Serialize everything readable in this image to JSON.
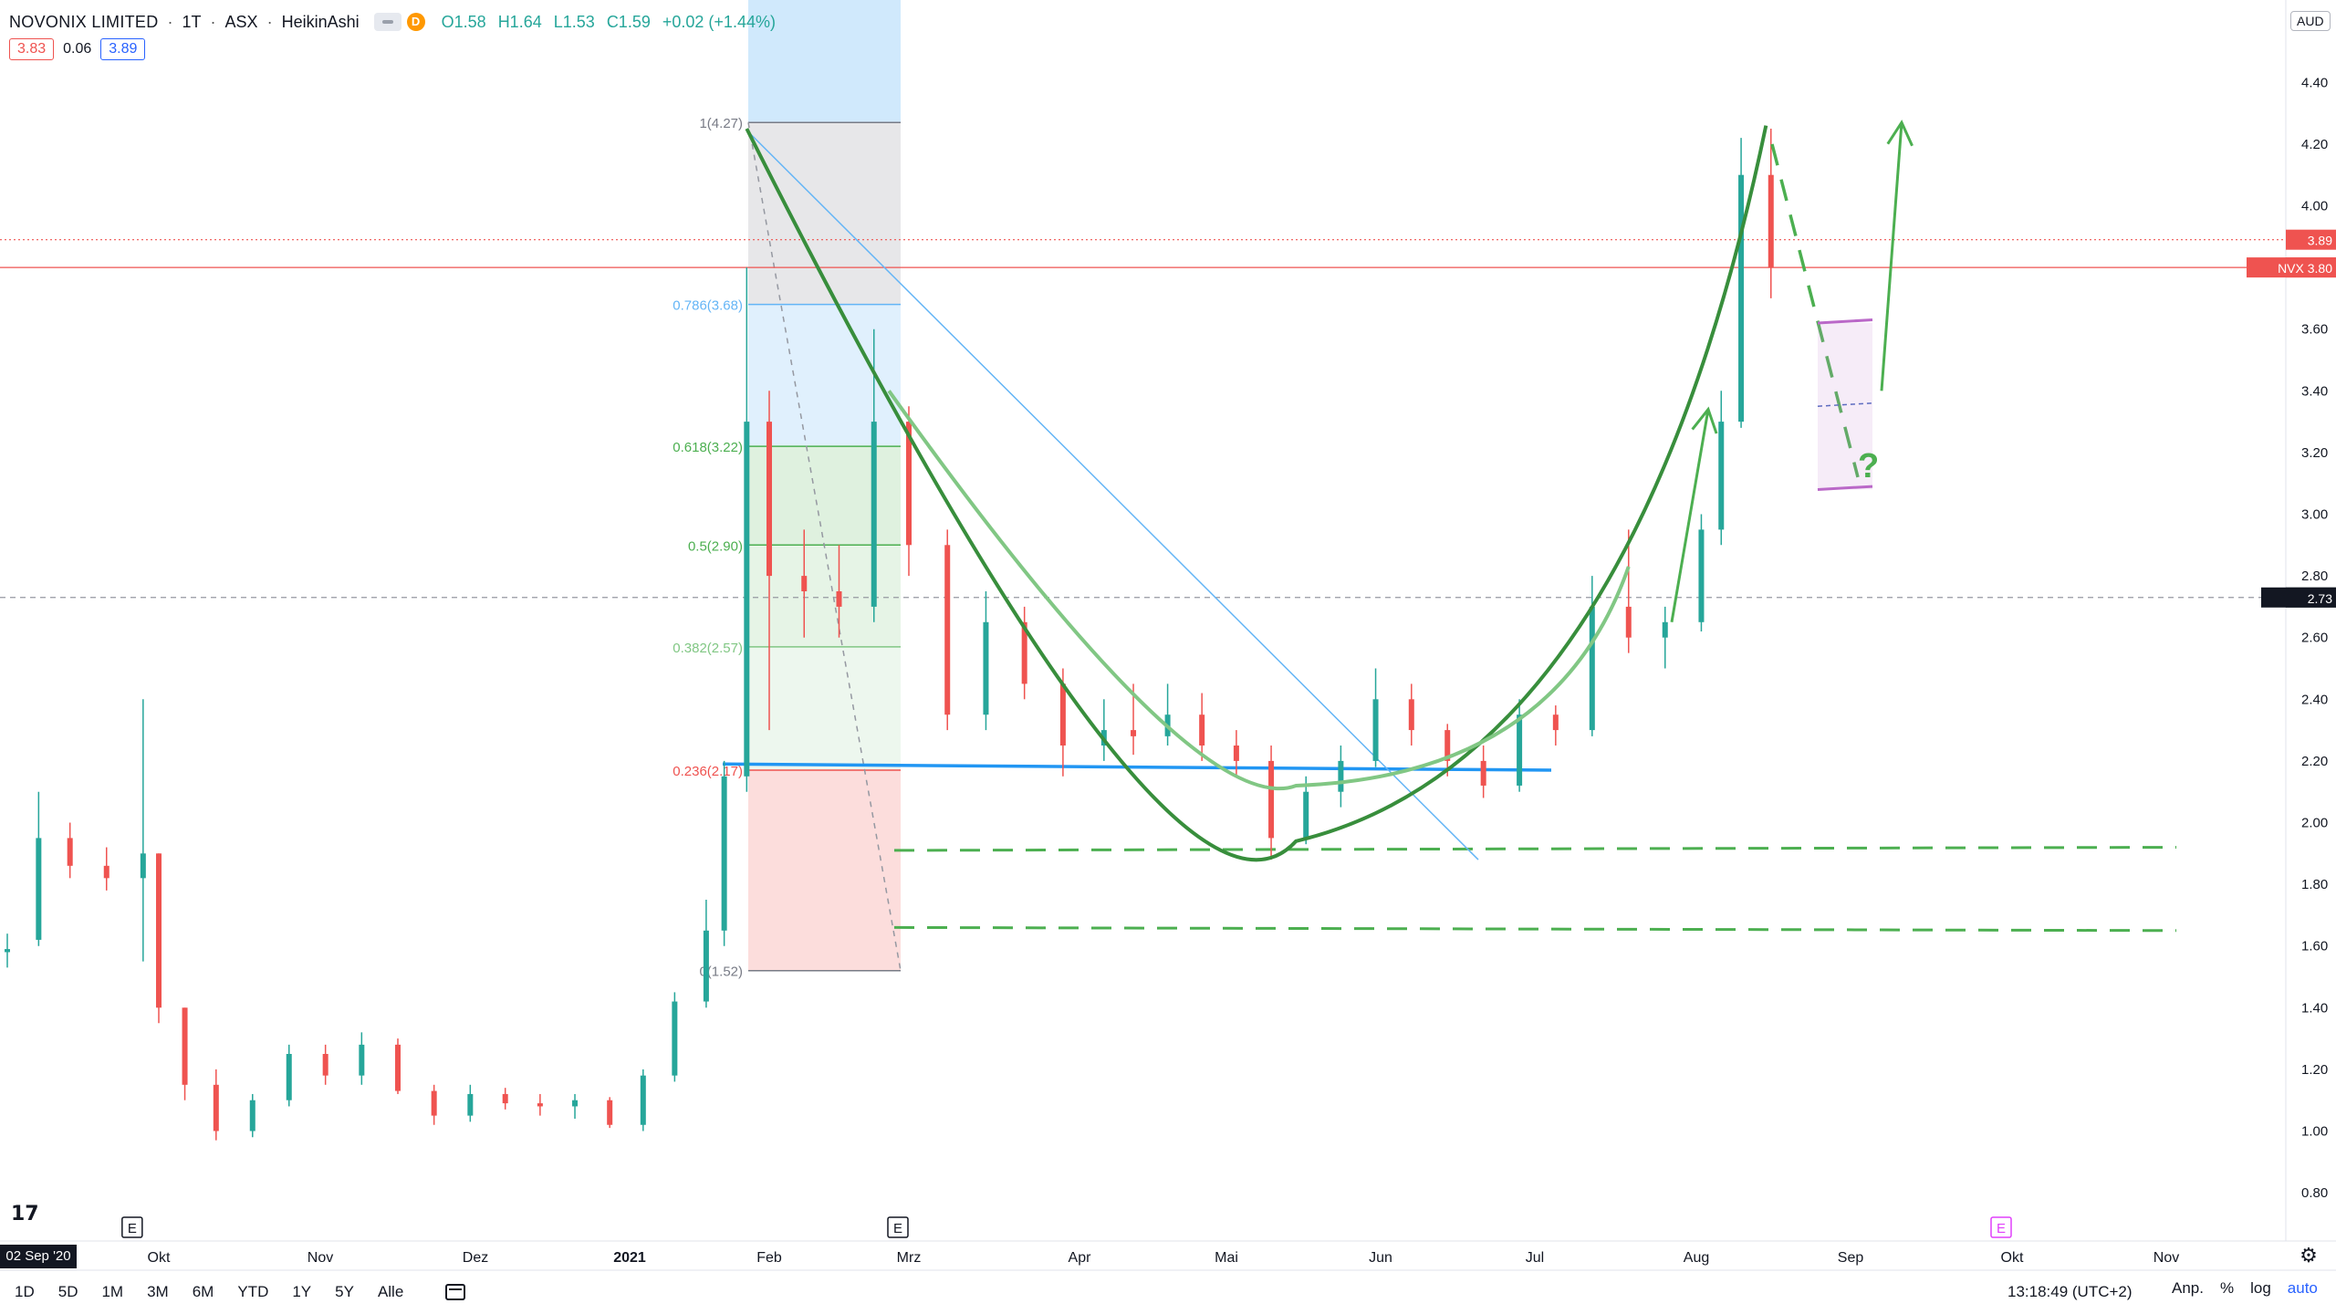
{
  "legend": {
    "symbol": "NOVONIX LIMITED",
    "interval": "1T",
    "exchange": "ASX",
    "chart_style": "HeikinAshi",
    "badge": "D",
    "open": "O1.58",
    "high": "H1.64",
    "low": "L1.53",
    "close": "C1.59",
    "change": "+0.02 (+1.44%)",
    "bid": "3.83",
    "spread": "0.06",
    "ask": "3.89"
  },
  "currency": "AUD",
  "price_axis": {
    "ticks": [
      "4.40",
      "4.20",
      "4.00",
      "3.80",
      "3.60",
      "3.40",
      "3.20",
      "3.00",
      "2.80",
      "2.60",
      "2.40",
      "2.20",
      "2.00",
      "1.80",
      "1.60",
      "1.40",
      "1.20",
      "1.00",
      "0.80"
    ],
    "labels": [
      {
        "text": "3.89",
        "color": "#ef5350",
        "price": 3.89
      },
      {
        "text": "NVX  3.80",
        "color": "#ef5350",
        "price": 3.8
      },
      {
        "text": "2.73",
        "color": "#131722",
        "price": 2.73
      }
    ]
  },
  "time_axis": {
    "ticks": [
      {
        "label": "Okt",
        "date": "2020-10-01"
      },
      {
        "label": "Nov",
        "date": "2020-11-01"
      },
      {
        "label": "Dez",
        "date": "2020-12-01"
      },
      {
        "label": "2021",
        "date": "2021-01-01"
      },
      {
        "label": "Feb",
        "date": "2021-02-01"
      },
      {
        "label": "Mrz",
        "date": "2021-03-01"
      },
      {
        "label": "Apr",
        "date": "2021-04-01"
      },
      {
        "label": "Mai",
        "date": "2021-05-01"
      },
      {
        "label": "Jun",
        "date": "2021-06-01"
      },
      {
        "label": "Jul",
        "date": "2021-07-01"
      },
      {
        "label": "Aug",
        "date": "2021-08-01"
      },
      {
        "label": "Sep",
        "date": "2021-09-01"
      },
      {
        "label": "Okt",
        "date": "2021-10-01"
      },
      {
        "label": "Nov",
        "date": "2021-11-01"
      }
    ],
    "start_label": "02 Sep '20",
    "earnings_markers": [
      "E",
      "E",
      "E"
    ]
  },
  "fib": {
    "levels": [
      {
        "label": "1(4.27)",
        "price": 4.27,
        "color": "#787b86"
      },
      {
        "label": "0.786(3.68)",
        "price": 3.68,
        "color": "#64b5f6"
      },
      {
        "label": "0.618(3.22)",
        "price": 3.22,
        "color": "#4caf50"
      },
      {
        "label": "0.5(2.90)",
        "price": 2.9,
        "color": "#4caf50"
      },
      {
        "label": "0.382(2.57)",
        "price": 2.57,
        "color": "#81c784"
      },
      {
        "label": "0.236(2.17)",
        "price": 2.17,
        "color": "#ef5350"
      },
      {
        "label": "0(1.52)",
        "price": 1.52,
        "color": "#787b86"
      }
    ]
  },
  "annotation": {
    "question_mark": "?"
  },
  "bottom_bar": {
    "ranges": [
      "1D",
      "5D",
      "1M",
      "3M",
      "6M",
      "YTD",
      "1Y",
      "5Y",
      "Alle"
    ],
    "clock": "13:18:49 (UTC+2)",
    "controls": [
      "Anp.",
      "%",
      "log",
      "auto"
    ]
  },
  "chart_data": {
    "type": "candlestick",
    "title": "",
    "ylim": [
      0.7,
      4.6
    ],
    "ylabel": "",
    "xlabel": "",
    "candles": [
      {
        "date": "2020-09-02",
        "o": 1.58,
        "h": 1.64,
        "l": 1.53,
        "c": 1.59
      },
      {
        "date": "2020-09-08",
        "o": 1.62,
        "h": 2.1,
        "l": 1.6,
        "c": 1.95
      },
      {
        "date": "2020-09-14",
        "o": 1.95,
        "h": 2.0,
        "l": 1.82,
        "c": 1.86
      },
      {
        "date": "2020-09-21",
        "o": 1.86,
        "h": 1.92,
        "l": 1.78,
        "c": 1.82
      },
      {
        "date": "2020-09-28",
        "o": 1.82,
        "h": 2.4,
        "l": 1.55,
        "c": 1.9
      },
      {
        "date": "2020-10-01",
        "o": 1.9,
        "h": 1.9,
        "l": 1.35,
        "c": 1.4
      },
      {
        "date": "2020-10-06",
        "o": 1.4,
        "h": 1.4,
        "l": 1.1,
        "c": 1.15
      },
      {
        "date": "2020-10-12",
        "o": 1.15,
        "h": 1.2,
        "l": 0.97,
        "c": 1.0
      },
      {
        "date": "2020-10-19",
        "o": 1.0,
        "h": 1.12,
        "l": 0.98,
        "c": 1.1
      },
      {
        "date": "2020-10-26",
        "o": 1.1,
        "h": 1.28,
        "l": 1.08,
        "c": 1.25
      },
      {
        "date": "2020-11-02",
        "o": 1.25,
        "h": 1.28,
        "l": 1.15,
        "c": 1.18
      },
      {
        "date": "2020-11-09",
        "o": 1.18,
        "h": 1.32,
        "l": 1.15,
        "c": 1.28
      },
      {
        "date": "2020-11-16",
        "o": 1.28,
        "h": 1.3,
        "l": 1.12,
        "c": 1.13
      },
      {
        "date": "2020-11-23",
        "o": 1.13,
        "h": 1.15,
        "l": 1.02,
        "c": 1.05
      },
      {
        "date": "2020-11-30",
        "o": 1.05,
        "h": 1.15,
        "l": 1.03,
        "c": 1.12
      },
      {
        "date": "2020-12-07",
        "o": 1.12,
        "h": 1.14,
        "l": 1.07,
        "c": 1.09
      },
      {
        "date": "2020-12-14",
        "o": 1.09,
        "h": 1.12,
        "l": 1.05,
        "c": 1.08
      },
      {
        "date": "2020-12-21",
        "o": 1.08,
        "h": 1.12,
        "l": 1.04,
        "c": 1.1
      },
      {
        "date": "2020-12-28",
        "o": 1.1,
        "h": 1.11,
        "l": 1.01,
        "c": 1.02
      },
      {
        "date": "2021-01-04",
        "o": 1.02,
        "h": 1.2,
        "l": 1.0,
        "c": 1.18
      },
      {
        "date": "2021-01-11",
        "o": 1.18,
        "h": 1.45,
        "l": 1.16,
        "c": 1.42
      },
      {
        "date": "2021-01-18",
        "o": 1.42,
        "h": 1.75,
        "l": 1.4,
        "c": 1.65
      },
      {
        "date": "2021-01-22",
        "o": 1.65,
        "h": 2.2,
        "l": 1.6,
        "c": 2.15
      },
      {
        "date": "2021-01-27",
        "o": 2.15,
        "h": 3.8,
        "l": 2.1,
        "c": 3.3
      },
      {
        "date": "2021-02-01",
        "o": 3.3,
        "h": 3.4,
        "l": 2.3,
        "c": 2.8
      },
      {
        "date": "2021-02-08",
        "o": 2.8,
        "h": 2.95,
        "l": 2.6,
        "c": 2.75
      },
      {
        "date": "2021-02-15",
        "o": 2.75,
        "h": 2.9,
        "l": 2.6,
        "c": 2.7
      },
      {
        "date": "2021-02-22",
        "o": 2.7,
        "h": 3.6,
        "l": 2.65,
        "c": 3.3
      },
      {
        "date": "2021-03-01",
        "o": 3.3,
        "h": 3.35,
        "l": 2.8,
        "c": 2.9
      },
      {
        "date": "2021-03-08",
        "o": 2.9,
        "h": 2.95,
        "l": 2.3,
        "c": 2.35
      },
      {
        "date": "2021-03-15",
        "o": 2.35,
        "h": 2.75,
        "l": 2.3,
        "c": 2.65
      },
      {
        "date": "2021-03-22",
        "o": 2.65,
        "h": 2.7,
        "l": 2.4,
        "c": 2.45
      },
      {
        "date": "2021-03-29",
        "o": 2.45,
        "h": 2.5,
        "l": 2.15,
        "c": 2.25
      },
      {
        "date": "2021-04-06",
        "o": 2.25,
        "h": 2.4,
        "l": 2.2,
        "c": 2.3
      },
      {
        "date": "2021-04-12",
        "o": 2.3,
        "h": 2.45,
        "l": 2.22,
        "c": 2.28
      },
      {
        "date": "2021-04-19",
        "o": 2.28,
        "h": 2.45,
        "l": 2.25,
        "c": 2.35
      },
      {
        "date": "2021-04-26",
        "o": 2.35,
        "h": 2.42,
        "l": 2.2,
        "c": 2.25
      },
      {
        "date": "2021-05-03",
        "o": 2.25,
        "h": 2.3,
        "l": 2.15,
        "c": 2.2
      },
      {
        "date": "2021-05-10",
        "o": 2.2,
        "h": 2.25,
        "l": 1.88,
        "c": 1.95
      },
      {
        "date": "2021-05-17",
        "o": 1.95,
        "h": 2.15,
        "l": 1.93,
        "c": 2.1
      },
      {
        "date": "2021-05-24",
        "o": 2.1,
        "h": 2.25,
        "l": 2.05,
        "c": 2.2
      },
      {
        "date": "2021-05-31",
        "o": 2.2,
        "h": 2.5,
        "l": 2.18,
        "c": 2.4
      },
      {
        "date": "2021-06-07",
        "o": 2.4,
        "h": 2.45,
        "l": 2.25,
        "c": 2.3
      },
      {
        "date": "2021-06-14",
        "o": 2.3,
        "h": 2.32,
        "l": 2.15,
        "c": 2.2
      },
      {
        "date": "2021-06-21",
        "o": 2.2,
        "h": 2.25,
        "l": 2.08,
        "c": 2.12
      },
      {
        "date": "2021-06-28",
        "o": 2.12,
        "h": 2.4,
        "l": 2.1,
        "c": 2.35
      },
      {
        "date": "2021-07-05",
        "o": 2.35,
        "h": 2.38,
        "l": 2.25,
        "c": 2.3
      },
      {
        "date": "2021-07-12",
        "o": 2.3,
        "h": 2.8,
        "l": 2.28,
        "c": 2.7
      },
      {
        "date": "2021-07-19",
        "o": 2.7,
        "h": 2.95,
        "l": 2.55,
        "c": 2.6
      },
      {
        "date": "2021-07-26",
        "o": 2.6,
        "h": 2.7,
        "l": 2.5,
        "c": 2.65
      },
      {
        "date": "2021-08-02",
        "o": 2.65,
        "h": 3.0,
        "l": 2.62,
        "c": 2.95
      },
      {
        "date": "2021-08-06",
        "o": 2.95,
        "h": 3.4,
        "l": 2.9,
        "c": 3.3
      },
      {
        "date": "2021-08-10",
        "o": 3.3,
        "h": 4.22,
        "l": 3.28,
        "c": 4.1
      },
      {
        "date": "2021-08-16",
        "o": 4.1,
        "h": 4.25,
        "l": 3.7,
        "c": 3.8
      }
    ],
    "horizontal_lines": [
      {
        "price": 2.73,
        "style": "dashed",
        "color": "#9598a1"
      },
      {
        "price": 3.89,
        "style": "dotted",
        "color": "#ef5350"
      },
      {
        "price": 3.8,
        "style": "solid",
        "color": "#ef5350"
      }
    ]
  }
}
